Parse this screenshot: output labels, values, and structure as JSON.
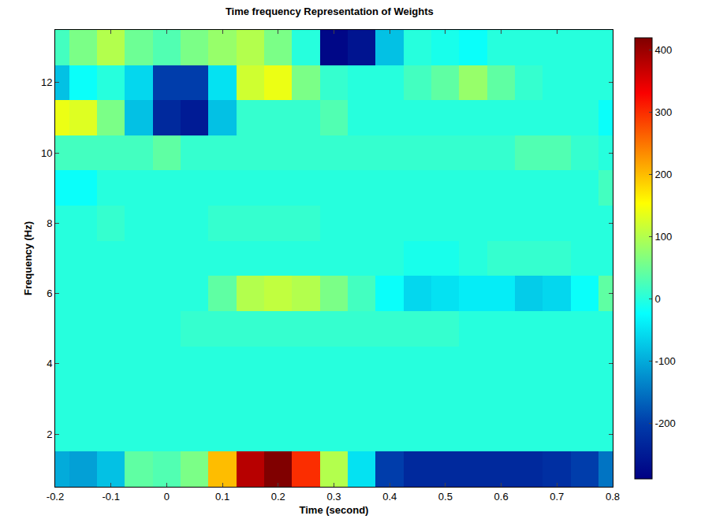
{
  "chart_data": {
    "type": "heatmap",
    "title": "Time frequency Representation of Weights",
    "x_label": "Time (second)",
    "y_label": "Frequency (Hz)",
    "x": [
      -0.2,
      -0.15,
      -0.1,
      -0.05,
      0,
      0.05,
      0.1,
      0.15,
      0.2,
      0.25,
      0.3,
      0.35,
      0.4,
      0.45,
      0.5,
      0.55,
      0.6,
      0.65,
      0.7,
      0.75,
      0.8
    ],
    "y": [
      1,
      2,
      3,
      4,
      5,
      6,
      7,
      8,
      9,
      10,
      11,
      12,
      13
    ],
    "z": [
      [
        -100,
        -110,
        -80,
        40,
        30,
        60,
        200,
        380,
        420,
        300,
        100,
        -50,
        -200,
        -230,
        -230,
        -230,
        -230,
        -230,
        -220,
        -200,
        -150
      ],
      [
        0,
        0,
        0,
        0,
        0,
        0,
        0,
        0,
        0,
        0,
        0,
        0,
        0,
        0,
        0,
        0,
        0,
        0,
        0,
        0,
        0
      ],
      [
        0,
        0,
        0,
        0,
        0,
        0,
        0,
        0,
        0,
        0,
        0,
        0,
        0,
        0,
        0,
        0,
        0,
        0,
        0,
        0,
        0
      ],
      [
        0,
        0,
        0,
        0,
        0,
        0,
        0,
        0,
        0,
        0,
        0,
        0,
        0,
        0,
        0,
        0,
        0,
        0,
        0,
        0,
        0
      ],
      [
        0,
        0,
        0,
        0,
        0,
        10,
        10,
        10,
        10,
        10,
        10,
        10,
        10,
        10,
        10,
        0,
        0,
        0,
        0,
        0,
        0
      ],
      [
        0,
        0,
        0,
        0,
        0,
        0,
        40,
        100,
        110,
        100,
        60,
        20,
        -20,
        -60,
        -50,
        -40,
        -40,
        -70,
        -60,
        -20,
        40
      ],
      [
        0,
        0,
        0,
        0,
        0,
        0,
        0,
        0,
        0,
        0,
        0,
        0,
        0,
        -10,
        -10,
        0,
        10,
        10,
        10,
        0,
        0
      ],
      [
        0,
        0,
        10,
        0,
        0,
        0,
        10,
        10,
        10,
        10,
        0,
        0,
        0,
        0,
        0,
        0,
        0,
        0,
        0,
        0,
        0
      ],
      [
        -20,
        -20,
        0,
        0,
        0,
        0,
        0,
        0,
        0,
        0,
        0,
        0,
        0,
        0,
        0,
        0,
        0,
        0,
        0,
        0,
        20
      ],
      [
        20,
        20,
        20,
        20,
        40,
        10,
        10,
        10,
        10,
        10,
        10,
        10,
        10,
        10,
        10,
        10,
        10,
        30,
        30,
        10,
        0
      ],
      [
        140,
        130,
        60,
        -80,
        -230,
        -250,
        -80,
        10,
        10,
        10,
        30,
        0,
        0,
        0,
        0,
        0,
        0,
        0,
        0,
        0,
        -20
      ],
      [
        -80,
        -20,
        0,
        -60,
        -200,
        -200,
        -50,
        120,
        140,
        60,
        10,
        0,
        0,
        20,
        40,
        80,
        40,
        10,
        0,
        0,
        0
      ],
      [
        20,
        60,
        100,
        50,
        30,
        60,
        80,
        100,
        60,
        0,
        -280,
        -260,
        -80,
        0,
        -10,
        -20,
        0,
        0,
        0,
        0,
        0
      ]
    ],
    "xlim": [
      -0.2,
      0.8
    ],
    "xticks": [
      -0.2,
      -0.1,
      0,
      0.1,
      0.2,
      0.3,
      0.4,
      0.5,
      0.6,
      0.7,
      0.8
    ],
    "ylim": [
      0.5,
      13.5
    ],
    "yticks": [
      2,
      4,
      6,
      8,
      10,
      12
    ],
    "colorbar_range": [
      -290,
      420
    ],
    "colorbar_ticks": [
      -200,
      -100,
      0,
      100,
      200,
      300,
      400
    ],
    "grid": false
  }
}
